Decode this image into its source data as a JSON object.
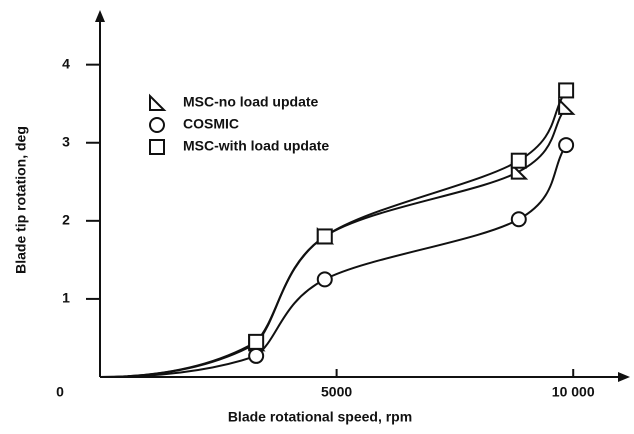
{
  "chart_data": {
    "type": "line",
    "x_label": "Blade rotational speed, rpm",
    "y_label": "Blade tip rotation, deg",
    "xlim": [
      0,
      11200
    ],
    "ylim": [
      0,
      4.7
    ],
    "xticks": [
      0,
      5000,
      {
        "value": 10000,
        "label": "10 000"
      }
    ],
    "yticks": [
      1,
      2,
      3,
      4
    ],
    "series": [
      {
        "name": "MSC-no load update",
        "color": "#111111",
        "marker": "triangle",
        "x": [
          3300,
          4750,
          8850,
          9850
        ],
        "values": [
          0.43,
          1.8,
          2.63,
          3.46
        ]
      },
      {
        "name": "COSMIC",
        "color": "#111111",
        "marker": "circle",
        "x": [
          3300,
          4750,
          8850,
          9850
        ],
        "values": [
          0.27,
          1.25,
          2.02,
          2.97
        ]
      },
      {
        "name": "MSC-with load update",
        "color": "#111111",
        "marker": "square",
        "x": [
          3300,
          4750,
          8850,
          9850
        ],
        "values": [
          0.45,
          1.8,
          2.77,
          3.67
        ]
      }
    ]
  }
}
